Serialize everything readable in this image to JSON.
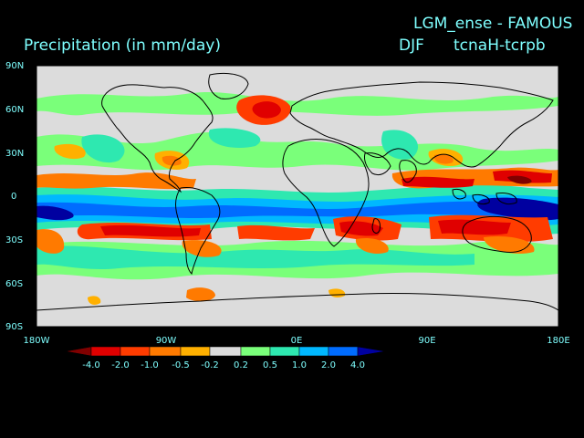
{
  "chart_data": {
    "type": "heatmap",
    "title_experiment": "LGM_ense - FAMOUS",
    "title_variable": "Precipitation (in mm/day)",
    "title_season": "DJF",
    "title_difference": "tcnaH-tcrpb",
    "x_ticks": [
      "180W",
      "90W",
      "0E",
      "90E",
      "180E"
    ],
    "y_ticks": [
      "90N",
      "60N",
      "30N",
      "0",
      "30S",
      "60S",
      "90S"
    ],
    "x_range": [
      -180,
      180
    ],
    "y_range": [
      -90,
      90
    ],
    "colorbar_levels": [
      "-4.0",
      "-2.0",
      "-1.0",
      "-0.5",
      "-0.2",
      "0.2",
      "0.5",
      "1.0",
      "2.0",
      "4.0"
    ],
    "colorbar_colors": [
      "#800000",
      "#e00000",
      "#ff3c00",
      "#ff7a00",
      "#ffb000",
      "#dcdcdc",
      "#7aff7a",
      "#2ee8b0",
      "#00b8ff",
      "#006cff",
      "#0000a0"
    ],
    "ocean_shading": "#dcdcdc"
  }
}
